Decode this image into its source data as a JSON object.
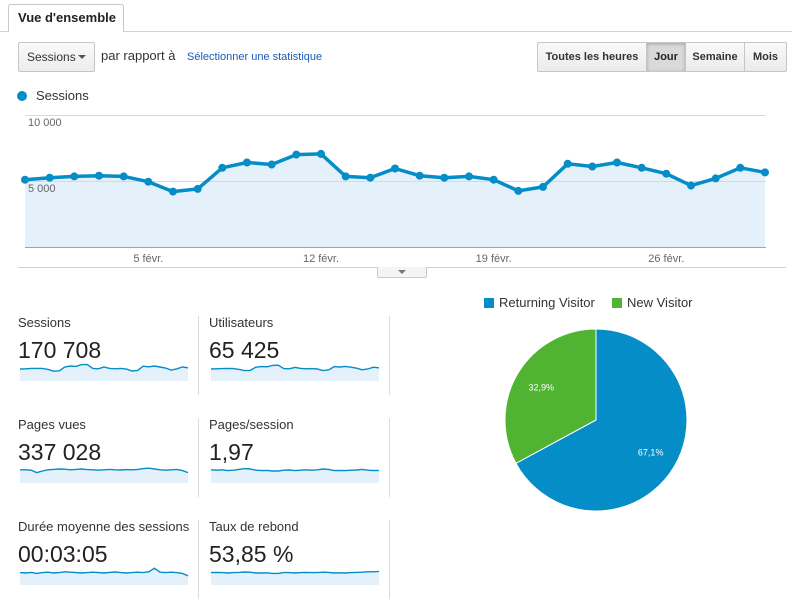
{
  "tabs": [
    {
      "label": "Vue d'ensemble",
      "active": true
    }
  ],
  "toolbar": {
    "metric_select": {
      "value": "Sessions",
      "icon": "caret-down-icon"
    },
    "compare_text": "par rapport à",
    "select_stat_link": "Sélectionner une statistique",
    "time_buttons": [
      {
        "label": "Toutes les heures",
        "selected": false
      },
      {
        "label": "Jour",
        "selected": true
      },
      {
        "label": "Semaine",
        "selected": false
      },
      {
        "label": "Mois",
        "selected": false
      }
    ]
  },
  "chart_toggle": {
    "icon": "caret-down-icon"
  },
  "colors": {
    "accent": "#058dc7",
    "area_fill": "#e5f1fa",
    "link": "#1a5ab6"
  },
  "chart_data": [
    {
      "type": "area",
      "series": [
        {
          "name": "Sessions",
          "values": [
            5100,
            5250,
            5350,
            5400,
            5350,
            4950,
            4200,
            4400,
            6000,
            6400,
            6250,
            7000,
            7050,
            5350,
            5250,
            5950,
            5400,
            5250,
            5350,
            5100,
            4250,
            4550,
            6300,
            6100,
            6400,
            6000,
            5550,
            4650,
            5200,
            6000,
            5650
          ]
        }
      ],
      "x_ticks": [
        "5 févr.",
        "12 févr.",
        "19 févr.",
        "26 févr."
      ],
      "y_ticks": [
        {
          "value": 10000,
          "label": "10 000"
        },
        {
          "value": 5000,
          "label": "5 000"
        }
      ],
      "ylim": [
        0,
        10000
      ],
      "grid": true,
      "legend": "top-left"
    },
    {
      "type": "pie",
      "labels": [
        "Returning Visitor",
        "New Visitor"
      ],
      "values": [
        67.1,
        32.9
      ],
      "value_labels": [
        "67,1%",
        "32,9%"
      ],
      "colors": [
        "#058dc7",
        "#50b432"
      ],
      "legend": "top"
    }
  ],
  "metrics": [
    {
      "label": "Sessions",
      "value": "170 708",
      "sparkline": [
        0.6,
        0.61,
        0.63,
        0.63,
        0.63,
        0.58,
        0.49,
        0.51,
        0.7,
        0.75,
        0.73,
        0.82,
        0.82,
        0.63,
        0.61,
        0.7,
        0.63,
        0.61,
        0.63,
        0.6,
        0.5,
        0.53,
        0.74,
        0.71,
        0.75,
        0.7,
        0.65,
        0.54,
        0.61,
        0.7,
        0.66
      ]
    },
    {
      "label": "Utilisateurs",
      "value": "65 425",
      "sparkline": [
        0.6,
        0.61,
        0.62,
        0.63,
        0.62,
        0.58,
        0.52,
        0.53,
        0.69,
        0.72,
        0.71,
        0.78,
        0.79,
        0.62,
        0.61,
        0.68,
        0.63,
        0.61,
        0.62,
        0.6,
        0.52,
        0.55,
        0.72,
        0.7,
        0.73,
        0.69,
        0.64,
        0.56,
        0.6,
        0.69,
        0.66
      ]
    },
    {
      "label": "Pages vues",
      "value": "337 028",
      "sparkline": [
        0.66,
        0.66,
        0.64,
        0.52,
        0.6,
        0.66,
        0.68,
        0.7,
        0.69,
        0.66,
        0.68,
        0.7,
        0.67,
        0.66,
        0.64,
        0.66,
        0.68,
        0.66,
        0.65,
        0.67,
        0.66,
        0.68,
        0.72,
        0.74,
        0.7,
        0.66,
        0.64,
        0.66,
        0.68,
        0.62,
        0.52
      ]
    },
    {
      "label": "Pages/session",
      "value": "1,97",
      "sparkline": [
        0.66,
        0.64,
        0.66,
        0.62,
        0.64,
        0.68,
        0.72,
        0.7,
        0.64,
        0.62,
        0.63,
        0.6,
        0.6,
        0.64,
        0.65,
        0.62,
        0.64,
        0.66,
        0.64,
        0.66,
        0.7,
        0.68,
        0.62,
        0.63,
        0.62,
        0.64,
        0.65,
        0.68,
        0.64,
        0.62,
        0.63
      ]
    },
    {
      "label": "Durée moyenne des sessions",
      "value": "00:03:05",
      "sparkline": [
        0.62,
        0.6,
        0.63,
        0.58,
        0.62,
        0.64,
        0.6,
        0.62,
        0.66,
        0.64,
        0.62,
        0.6,
        0.62,
        0.64,
        0.62,
        0.6,
        0.63,
        0.65,
        0.62,
        0.6,
        0.62,
        0.64,
        0.62,
        0.66,
        0.84,
        0.64,
        0.62,
        0.64,
        0.62,
        0.58,
        0.46
      ]
    },
    {
      "label": "Taux de rebond",
      "value": "53,85 %",
      "sparkline": [
        0.62,
        0.63,
        0.62,
        0.6,
        0.62,
        0.63,
        0.65,
        0.64,
        0.6,
        0.6,
        0.61,
        0.58,
        0.58,
        0.62,
        0.62,
        0.6,
        0.62,
        0.63,
        0.62,
        0.62,
        0.64,
        0.63,
        0.6,
        0.61,
        0.6,
        0.62,
        0.63,
        0.64,
        0.66,
        0.66,
        0.68
      ]
    }
  ]
}
